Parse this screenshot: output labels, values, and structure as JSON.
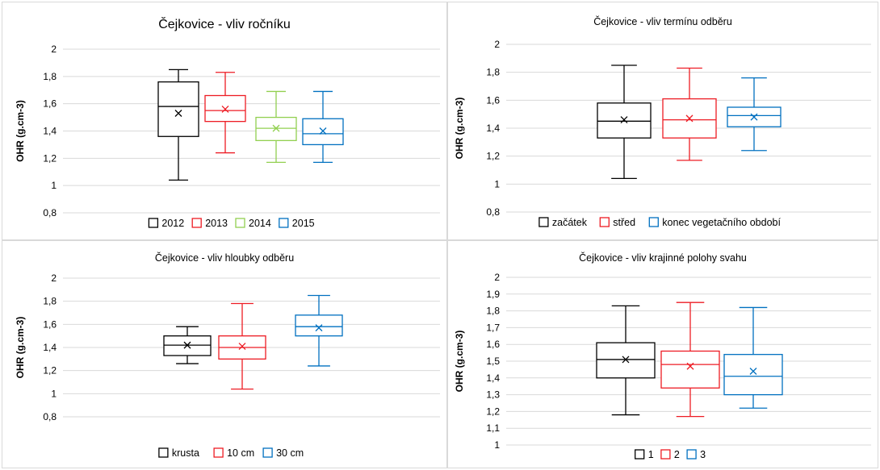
{
  "colors": {
    "black": "#000000",
    "red": "#ed1c24",
    "green": "#92d050",
    "blue": "#0070c0",
    "grid": "#d9d9d9",
    "axis_text": "#000000"
  },
  "chart_data": [
    {
      "type": "box",
      "title": "Čejkovice - vliv ročníku",
      "ylabel": "OHR (g.cm-3)",
      "ylim": [
        0.8,
        2.0
      ],
      "yticks": [
        0.8,
        1,
        1.2,
        1.4,
        1.6,
        1.8,
        2
      ],
      "ytick_labels": [
        "0,8",
        "1",
        "1,2",
        "1,4",
        "1,6",
        "1,8",
        "2"
      ],
      "grid": true,
      "legend_position": "bottom",
      "series": [
        {
          "name": "2012",
          "color": "#000000",
          "min": 1.04,
          "q1": 1.36,
          "median": 1.58,
          "q3": 1.76,
          "max": 1.85,
          "mean": 1.53
        },
        {
          "name": "2013",
          "color": "#ed1c24",
          "min": 1.24,
          "q1": 1.47,
          "median": 1.55,
          "q3": 1.66,
          "max": 1.83,
          "mean": 1.56
        },
        {
          "name": "2014",
          "color": "#92d050",
          "min": 1.17,
          "q1": 1.33,
          "median": 1.42,
          "q3": 1.5,
          "max": 1.69,
          "mean": 1.42
        },
        {
          "name": "2015",
          "color": "#0070c0",
          "min": 1.17,
          "q1": 1.3,
          "median": 1.38,
          "q3": 1.49,
          "max": 1.69,
          "mean": 1.4
        }
      ]
    },
    {
      "type": "box",
      "title": "Čejkovice - vliv termínu odběru",
      "ylabel": "OHR (g.cm-3)",
      "ylim": [
        0.8,
        2.0
      ],
      "yticks": [
        0.8,
        1,
        1.2,
        1.4,
        1.6,
        1.8,
        2
      ],
      "ytick_labels": [
        "0,8",
        "1",
        "1,2",
        "1,4",
        "1,6",
        "1,8",
        "2"
      ],
      "grid": true,
      "legend_position": "bottom",
      "series": [
        {
          "name": "začátek",
          "color": "#000000",
          "min": 1.04,
          "q1": 1.33,
          "median": 1.45,
          "q3": 1.58,
          "max": 1.85,
          "mean": 1.46
        },
        {
          "name": "střed",
          "color": "#ed1c24",
          "min": 1.17,
          "q1": 1.33,
          "median": 1.46,
          "q3": 1.61,
          "max": 1.83,
          "mean": 1.47
        },
        {
          "name": "konec vegetačního období",
          "color": "#0070c0",
          "min": 1.24,
          "q1": 1.41,
          "median": 1.49,
          "q3": 1.55,
          "max": 1.76,
          "mean": 1.48
        }
      ]
    },
    {
      "type": "box",
      "title": "Čejkovice - vliv hloubky odběru",
      "ylabel": "OHR (g.cm-3)",
      "ylim": [
        0.8,
        2.0
      ],
      "yticks": [
        0.8,
        1,
        1.2,
        1.4,
        1.6,
        1.8,
        2
      ],
      "ytick_labels": [
        "0,8",
        "1",
        "1,2",
        "1,4",
        "1,6",
        "1,8",
        "2"
      ],
      "grid": true,
      "legend_position": "bottom",
      "series": [
        {
          "name": "krusta",
          "color": "#000000",
          "min": 1.26,
          "q1": 1.33,
          "median": 1.42,
          "q3": 1.5,
          "max": 1.58,
          "mean": 1.42
        },
        {
          "name": "10 cm",
          "color": "#ed1c24",
          "min": 1.04,
          "q1": 1.3,
          "median": 1.4,
          "q3": 1.5,
          "max": 1.78,
          "mean": 1.41
        },
        {
          "name": "30 cm",
          "color": "#0070c0",
          "min": 1.24,
          "q1": 1.5,
          "median": 1.58,
          "q3": 1.68,
          "max": 1.85,
          "mean": 1.57
        }
      ]
    },
    {
      "type": "box",
      "title": "Čejkovice - vliv krajinné polohy svahu",
      "ylabel": "OHR (g.cm-3)",
      "ylim": [
        1.0,
        2.0
      ],
      "yticks": [
        1,
        1.1,
        1.2,
        1.3,
        1.4,
        1.5,
        1.6,
        1.7,
        1.8,
        1.9,
        2
      ],
      "ytick_labels": [
        "1",
        "1,1",
        "1,2",
        "1,3",
        "1,4",
        "1,5",
        "1,6",
        "1,7",
        "1,8",
        "1,9",
        "2"
      ],
      "grid": true,
      "legend_position": "bottom",
      "series": [
        {
          "name": "1",
          "color": "#000000",
          "min": 1.18,
          "q1": 1.4,
          "median": 1.51,
          "q3": 1.61,
          "max": 1.83,
          "mean": 1.51
        },
        {
          "name": "2",
          "color": "#ed1c24",
          "min": 1.17,
          "q1": 1.34,
          "median": 1.48,
          "q3": 1.56,
          "max": 1.85,
          "mean": 1.47
        },
        {
          "name": "3",
          "color": "#0070c0",
          "min": 1.22,
          "q1": 1.3,
          "median": 1.41,
          "q3": 1.54,
          "max": 1.82,
          "mean": 1.44
        }
      ]
    }
  ]
}
